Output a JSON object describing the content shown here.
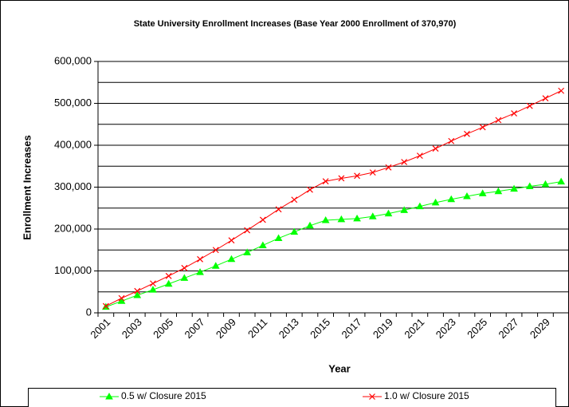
{
  "chart_data": {
    "type": "line",
    "title": "State University Enrollment Increases (Base Year 2000 Enrollment of 370,970)",
    "x_label": "Year",
    "y_label": "Enrollment Increases",
    "categories": [
      "2001",
      null,
      "2003",
      null,
      "2005",
      null,
      "2007",
      null,
      "2009",
      null,
      "2011",
      null,
      "2013",
      null,
      "2015",
      null,
      "2017",
      null,
      "2019",
      null,
      "2021",
      null,
      "2023",
      null,
      "2025",
      null,
      "2027",
      null,
      "2029",
      null
    ],
    "series": [
      {
        "name": "0.5 w/ Closure 2015",
        "color": "#00ff00",
        "marker": "triangle",
        "values": [
          14000,
          28000,
          42000,
          55000,
          69000,
          83000,
          97000,
          112000,
          128000,
          144000,
          161000,
          178000,
          193000,
          208000,
          221000,
          223000,
          225000,
          230000,
          237000,
          245000,
          254000,
          263000,
          271000,
          278000,
          285000,
          290000,
          296000,
          302000,
          307000,
          313000
        ]
      },
      {
        "name": "1.0 w/ Closure 2015",
        "color": "#ff0000",
        "marker": "x",
        "values": [
          16000,
          35000,
          52000,
          70000,
          88000,
          107000,
          128000,
          150000,
          173000,
          197000,
          222000,
          247000,
          270000,
          294000,
          314000,
          321000,
          327000,
          335000,
          347000,
          360000,
          375000,
          392000,
          410000,
          427000,
          443000,
          460000,
          476000,
          494000,
          512000,
          530000
        ]
      }
    ],
    "ylim": [
      0,
      600000
    ],
    "yticks": [
      0,
      {
        "value": 100000,
        "label": "100,000"
      },
      {
        "value": 200000,
        "label": "200,000"
      },
      {
        "value": 300000,
        "label": "300,000"
      },
      {
        "value": 400000,
        "label": "400,000"
      },
      {
        "value": 500000,
        "label": "500,000"
      },
      {
        "value": 600000,
        "label": "600,000"
      }
    ],
    "ygrid": [
      50000,
      100000,
      150000,
      200000,
      250000,
      300000,
      350000,
      400000,
      450000,
      500000,
      550000,
      600000
    ],
    "grid": true,
    "legend": "bottom"
  }
}
